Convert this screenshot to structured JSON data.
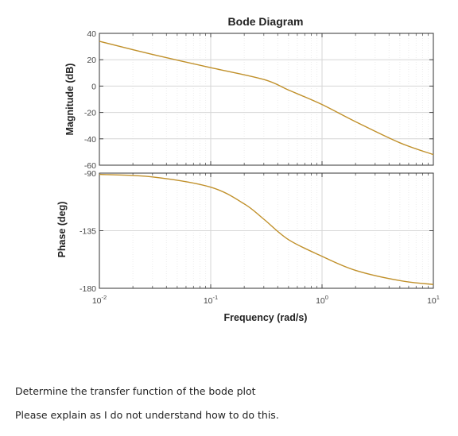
{
  "chart_data": {
    "type": "line",
    "title": "Bode Diagram",
    "xlabel": "Frequency (rad/s)",
    "xscale": "log",
    "xlim": [
      0.01,
      10
    ],
    "x_ticks": [
      {
        "base": "10",
        "exp": "-2"
      },
      {
        "base": "10",
        "exp": "-1"
      },
      {
        "base": "10",
        "exp": "0"
      },
      {
        "base": "10",
        "exp": "1"
      }
    ],
    "grid": true,
    "line_color": "#C0902A",
    "magnitude": {
      "ylabel": "Magnitude (dB)",
      "ylim": [
        -60,
        40
      ],
      "yticks": [
        "40",
        "20",
        "0",
        "-20",
        "-40",
        "-60"
      ],
      "x": [
        0.01,
        0.03,
        0.1,
        0.3,
        0.5,
        1,
        2,
        5,
        10
      ],
      "y": [
        34,
        24,
        14,
        5,
        -3,
        -14,
        -27,
        -43,
        -52
      ]
    },
    "phase": {
      "ylabel": "Phase (deg)",
      "ylim": [
        -180,
        -90
      ],
      "yticks": [
        "-90",
        "-135",
        "-180"
      ],
      "x": [
        0.01,
        0.03,
        0.1,
        0.2,
        0.3,
        0.5,
        1,
        2,
        5,
        10
      ],
      "y": [
        -91,
        -93,
        -101,
        -114,
        -126,
        -142,
        -155,
        -166,
        -174,
        -177
      ]
    }
  },
  "question": {
    "line1": "Determine the transfer function of the bode plot",
    "line2": "Please explain as I do not understand how to do this."
  }
}
